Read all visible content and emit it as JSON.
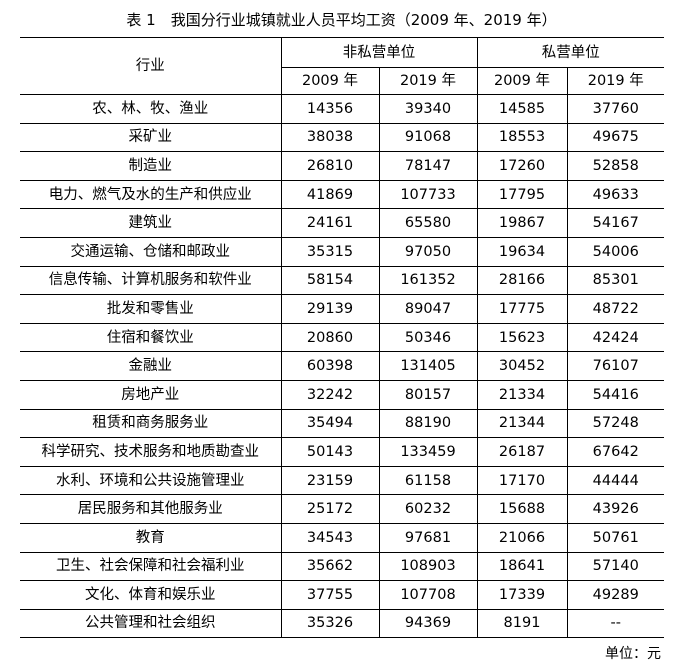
{
  "title": "表 1　我国分行业城镇就业人员平均工资（2009 年、2019 年）",
  "header": {
    "industry": "行业",
    "group_nonprivate": "非私营单位",
    "group_private": "私营单位",
    "years": [
      "2009 年",
      "2019 年",
      "2009 年",
      "2019 年"
    ]
  },
  "rows": [
    {
      "industry": "农、林、牧、渔业",
      "np2009": "14356",
      "np2019": "39340",
      "p2009": "14585",
      "p2019": "37760"
    },
    {
      "industry": "采矿业",
      "np2009": "38038",
      "np2019": "91068",
      "p2009": "18553",
      "p2019": "49675"
    },
    {
      "industry": "制造业",
      "np2009": "26810",
      "np2019": "78147",
      "p2009": "17260",
      "p2019": "52858"
    },
    {
      "industry": "电力、燃气及水的生产和供应业",
      "np2009": "41869",
      "np2019": "107733",
      "p2009": "17795",
      "p2019": "49633"
    },
    {
      "industry": "建筑业",
      "np2009": "24161",
      "np2019": "65580",
      "p2009": "19867",
      "p2019": "54167"
    },
    {
      "industry": "交通运输、仓储和邮政业",
      "np2009": "35315",
      "np2019": "97050",
      "p2009": "19634",
      "p2019": "54006"
    },
    {
      "industry": "信息传输、计算机服务和软件业",
      "np2009": "58154",
      "np2019": "161352",
      "p2009": "28166",
      "p2019": "85301"
    },
    {
      "industry": "批发和零售业",
      "np2009": "29139",
      "np2019": "89047",
      "p2009": "17775",
      "p2019": "48722"
    },
    {
      "industry": "住宿和餐饮业",
      "np2009": "20860",
      "np2019": "50346",
      "p2009": "15623",
      "p2019": "42424"
    },
    {
      "industry": "金融业",
      "np2009": "60398",
      "np2019": "131405",
      "p2009": "30452",
      "p2019": "76107"
    },
    {
      "industry": "房地产业",
      "np2009": "32242",
      "np2019": "80157",
      "p2009": "21334",
      "p2019": "54416"
    },
    {
      "industry": "租赁和商务服务业",
      "np2009": "35494",
      "np2019": "88190",
      "p2009": "21344",
      "p2019": "57248"
    },
    {
      "industry": "科学研究、技术服务和地质勘查业",
      "np2009": "50143",
      "np2019": "133459",
      "p2009": "26187",
      "p2019": "67642"
    },
    {
      "industry": "水利、环境和公共设施管理业",
      "np2009": "23159",
      "np2019": "61158",
      "p2009": "17170",
      "p2019": "44444"
    },
    {
      "industry": "居民服务和其他服务业",
      "np2009": "25172",
      "np2019": "60232",
      "p2009": "15688",
      "p2019": "43926"
    },
    {
      "industry": "教育",
      "np2009": "34543",
      "np2019": "97681",
      "p2009": "21066",
      "p2019": "50761"
    },
    {
      "industry": "卫生、社会保障和社会福利业",
      "np2009": "35662",
      "np2019": "108903",
      "p2009": "18641",
      "p2019": "57140"
    },
    {
      "industry": "文化、体育和娱乐业",
      "np2009": "37755",
      "np2019": "107708",
      "p2009": "17339",
      "p2019": "49289"
    },
    {
      "industry": "公共管理和社会组织",
      "np2009": "35326",
      "np2019": "94369",
      "p2009": "8191",
      "p2019": "--"
    }
  ],
  "unit_note": "单位：元"
}
